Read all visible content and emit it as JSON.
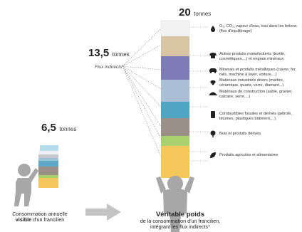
{
  "big_person": {
    "total_value": "20",
    "total_unit": "tonnes",
    "layers": [
      {
        "label": "O₂, CO₂, vapeur d'eau, eau dans les bétons (flux d'équilibrage)",
        "color": "#f2f2f2",
        "icon": "drop-icon"
      },
      {
        "label": "Autres produits manufacturés (textile, cosmétiques,...) et engrais minéraux",
        "color": "#d9c5a3",
        "icon": "tshirt-icon"
      },
      {
        "label": "Minerais et produits métalliques (cuivre, fer, rails, machine à laver, voiture,...)",
        "color": "#7f7ab8",
        "icon": "car-icon"
      },
      {
        "label": "Matériaux industriels divers (marbre, céramique, quartz, verre, diamant...)",
        "color": "#a8bfd6",
        "icon": "diamond-icon"
      },
      {
        "label": "Matériaux de construction (sable, gravier, calcaire, verre,...)",
        "color": "#4ea6c4",
        "icon": "pile-icon"
      },
      {
        "label": "Combustibles fossiles et dérivés (pétrole, bitumes, plastiques bâtiment,...)",
        "color": "#9a9088",
        "icon": "barrel-icon"
      },
      {
        "label": "Bois et produits dérivés",
        "color": "#a9d06f",
        "icon": "tree-icon"
      },
      {
        "label": "Produits agricoles et alimentaires",
        "color": "#f3c75a",
        "icon": "leaf-icon"
      }
    ]
  },
  "indirect": {
    "value": "13,5",
    "unit": "tonnes",
    "label": "Flux indirects*"
  },
  "small_person": {
    "value": "6,5",
    "unit": "tonnes",
    "caption_line1": "Consommation annuelle",
    "caption_bold": "visible",
    "caption_line2_rest": " d'un francilien"
  },
  "caption_right": {
    "title": "Véritable poids",
    "line1": "de la consommation d'un francilien,",
    "line2": "intégrant les flux indirects*"
  },
  "colors": {
    "person": "#a7a7a7",
    "arrow": "#c4c4c4",
    "dotted": "#777777"
  }
}
